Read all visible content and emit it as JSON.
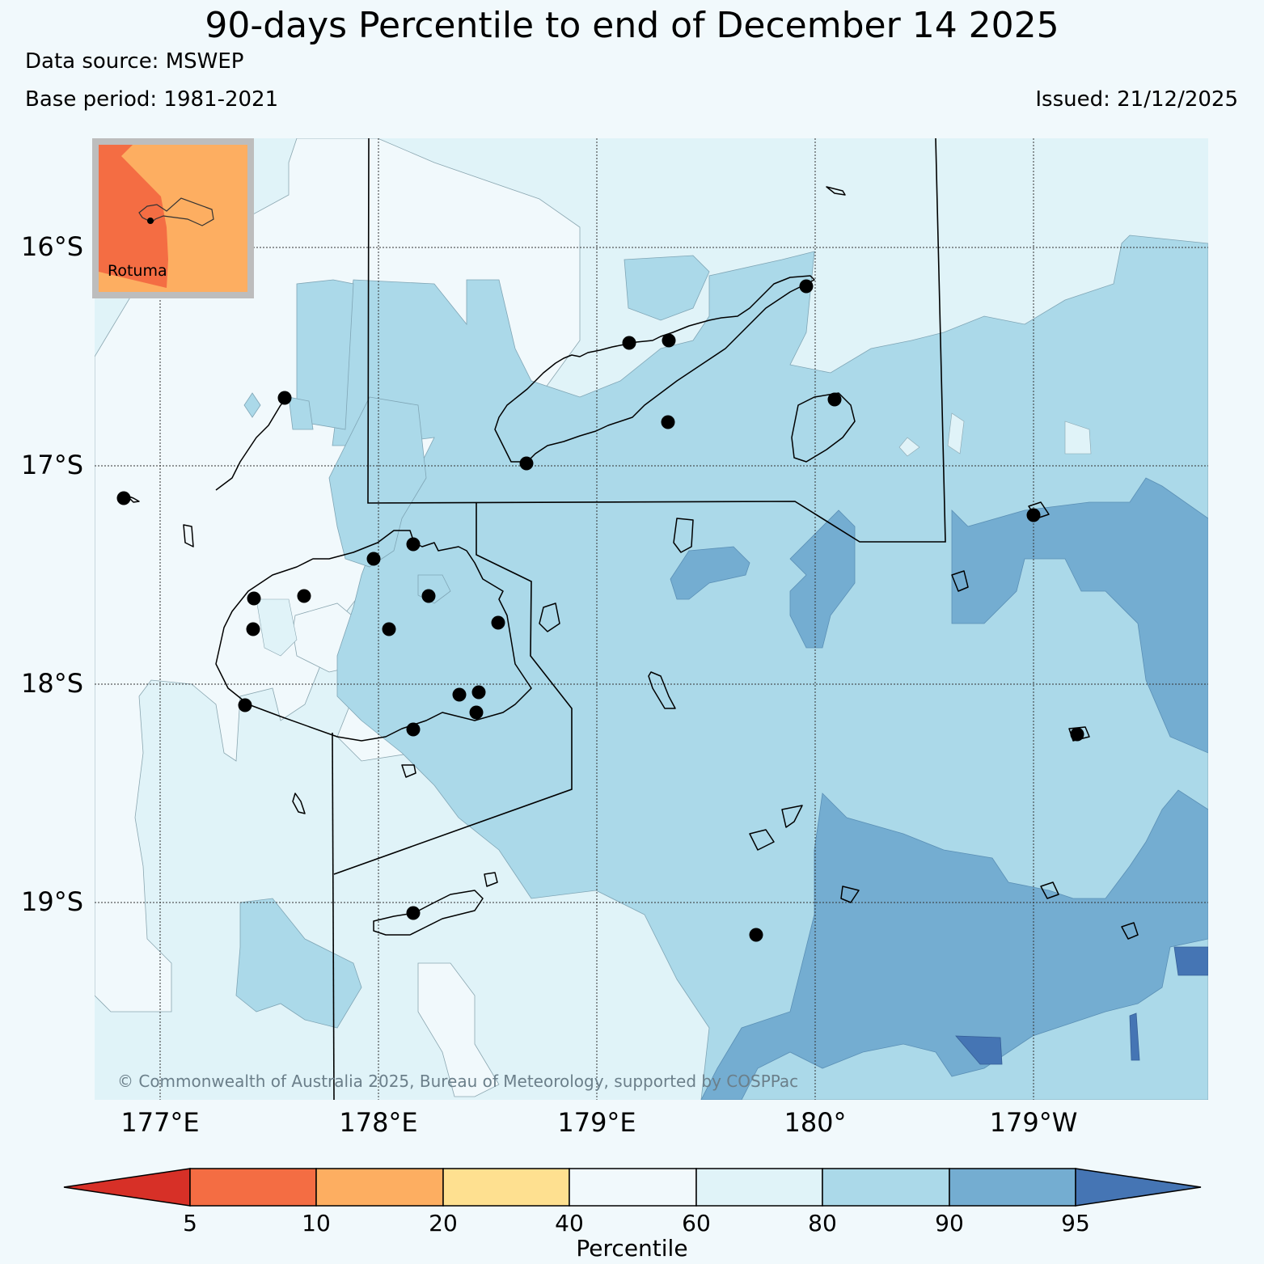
{
  "title": "90-days Percentile to end of December 14 2025",
  "data_source": "Data source: MSWEP",
  "base_period": "Base period: 1981-2021",
  "issued": "Issued: 21/12/2025",
  "inset_label": "Rotuma",
  "copyright": "© Commonwealth of Australia 2025, Bureau of Meteorology, supported by COSPPac",
  "lat_ticks": [
    "16°S",
    "17°S",
    "18°S",
    "19°S"
  ],
  "lon_ticks": [
    "177°E",
    "178°E",
    "179°E",
    "180°",
    "179°W"
  ],
  "colorbar": {
    "label": "Percentile",
    "ticks": [
      "5",
      "10",
      "20",
      "40",
      "60",
      "80",
      "90",
      "95"
    ],
    "colors": {
      "lt5": "#d73027",
      "5_10": "#f46d43",
      "10_20": "#fdae61",
      "20_40": "#fee090",
      "40_60": "#f1f9fc",
      "60_80": "#e0f3f8",
      "80_90": "#abd9e9",
      "90_95": "#74add1",
      "gt95": "#4575b4"
    }
  }
}
